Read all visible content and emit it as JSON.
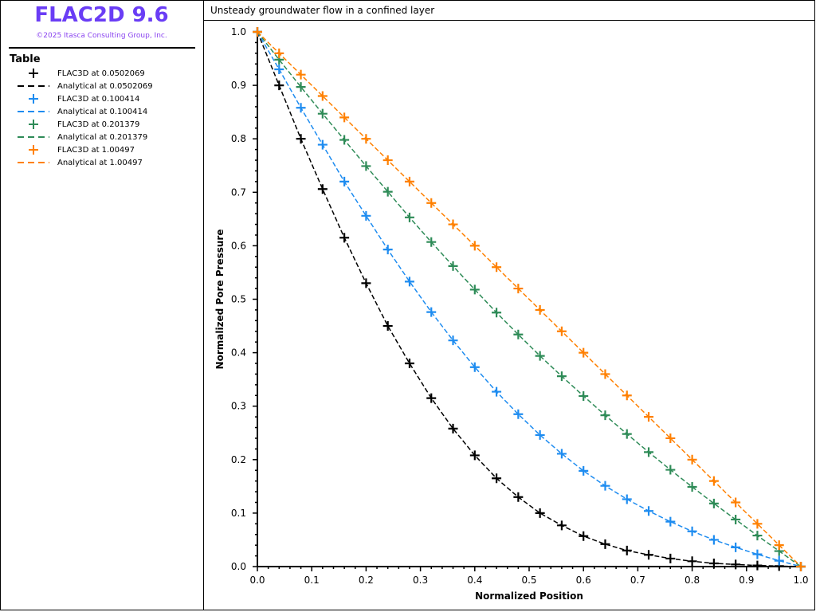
{
  "app": {
    "title": "FLAC2D 9.6",
    "copyright": "©2025 Itasca Consulting Group, Inc."
  },
  "legend": {
    "title": "Table",
    "items": [
      {
        "label": "FLAC3D at 0.0502069",
        "kind": "marker",
        "color": "#000000"
      },
      {
        "label": "Analytical at 0.0502069",
        "kind": "dash",
        "color": "#000000"
      },
      {
        "label": "FLAC3D at 0.100414",
        "kind": "marker",
        "color": "#1e8cf0"
      },
      {
        "label": "Analytical at 0.100414",
        "kind": "dash",
        "color": "#1e8cf0"
      },
      {
        "label": "FLAC3D at 0.201379",
        "kind": "marker",
        "color": "#2e8b57"
      },
      {
        "label": "Analytical at 0.201379",
        "kind": "dash",
        "color": "#2e8b57"
      },
      {
        "label": "FLAC3D at 1.00497",
        "kind": "marker",
        "color": "#ff8000"
      },
      {
        "label": "Analytical at 1.00497",
        "kind": "dash",
        "color": "#ff8000"
      }
    ]
  },
  "chart_data": {
    "type": "line",
    "title": "Unsteady groundwater flow in a confined layer",
    "xlabel": "Normalized Position",
    "ylabel": "Normalized Pore Pressure",
    "xlim": [
      0,
      1
    ],
    "ylim": [
      0,
      1
    ],
    "xticks": [
      "0.0",
      "0.1",
      "0.2",
      "0.3",
      "0.4",
      "0.5",
      "0.6",
      "0.7",
      "0.8",
      "0.9",
      "1.0"
    ],
    "yticks": [
      "0.0",
      "0.1",
      "0.2",
      "0.3",
      "0.4",
      "0.5",
      "0.6",
      "0.7",
      "0.8",
      "0.9",
      "1.0"
    ],
    "x": [
      0,
      0.04,
      0.08,
      0.12,
      0.16,
      0.2,
      0.24,
      0.28,
      0.32,
      0.36,
      0.4,
      0.44,
      0.48,
      0.52,
      0.56,
      0.6,
      0.64,
      0.68,
      0.72,
      0.76,
      0.8,
      0.84,
      0.88,
      0.92,
      0.96,
      1.0
    ],
    "series": [
      {
        "name": "t=0.0502069",
        "color": "#000000",
        "values": [
          1,
          0.9,
          0.8,
          0.706,
          0.615,
          0.53,
          0.45,
          0.38,
          0.315,
          0.258,
          0.208,
          0.165,
          0.13,
          0.1,
          0.077,
          0.057,
          0.042,
          0.03,
          0.022,
          0.015,
          0.01,
          0.006,
          0.004,
          0.002,
          0.001,
          0
        ]
      },
      {
        "name": "t=0.100414",
        "color": "#1e8cf0",
        "values": [
          1,
          0.93,
          0.858,
          0.789,
          0.72,
          0.656,
          0.593,
          0.533,
          0.476,
          0.423,
          0.373,
          0.327,
          0.285,
          0.246,
          0.211,
          0.179,
          0.151,
          0.126,
          0.104,
          0.084,
          0.066,
          0.05,
          0.036,
          0.023,
          0.011,
          0
        ]
      },
      {
        "name": "t=0.201379",
        "color": "#2e8b57",
        "values": [
          1,
          0.948,
          0.897,
          0.847,
          0.798,
          0.749,
          0.701,
          0.653,
          0.607,
          0.562,
          0.518,
          0.475,
          0.434,
          0.394,
          0.356,
          0.319,
          0.283,
          0.248,
          0.214,
          0.181,
          0.149,
          0.118,
          0.088,
          0.058,
          0.029,
          0
        ]
      },
      {
        "name": "t=1.00497",
        "color": "#ff8000",
        "values": [
          1,
          0.96,
          0.92,
          0.88,
          0.84,
          0.8,
          0.76,
          0.72,
          0.68,
          0.64,
          0.6,
          0.56,
          0.52,
          0.48,
          0.44,
          0.4,
          0.36,
          0.32,
          0.28,
          0.24,
          0.2,
          0.16,
          0.12,
          0.08,
          0.04,
          0
        ]
      }
    ]
  }
}
